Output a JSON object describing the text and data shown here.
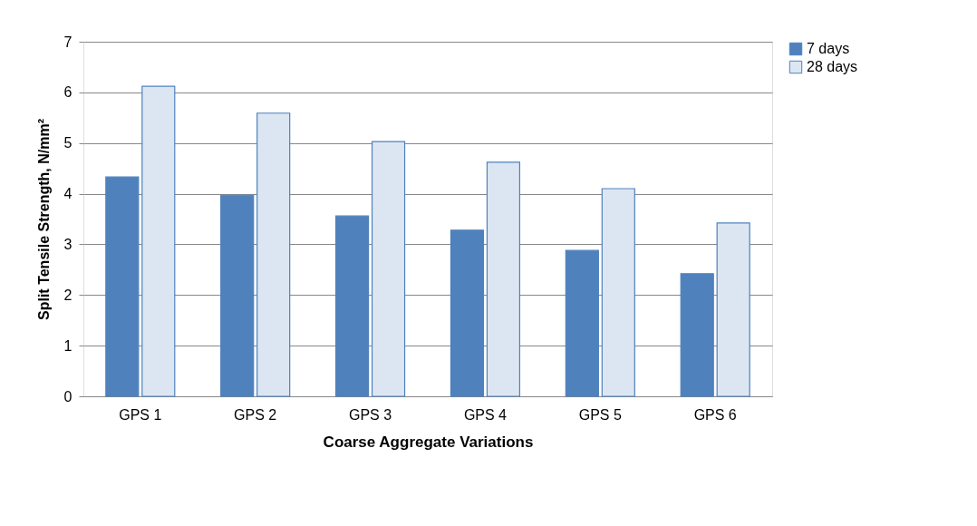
{
  "chart_data": {
    "type": "bar",
    "xlabel": "Coarse Aggregate Variations",
    "ylabel": "Split Tensile Strength, N/mm²",
    "categories": [
      "GPS 1",
      "GPS 2",
      "GPS 3",
      "GPS 4",
      "GPS 5",
      "GPS 6"
    ],
    "series": [
      {
        "name": "7 days",
        "color": "#4f81bd",
        "values": [
          4.33,
          3.97,
          3.56,
          3.28,
          2.88,
          2.42
        ]
      },
      {
        "name": "28 days",
        "color": "#dce6f2",
        "values": [
          6.12,
          5.59,
          5.03,
          4.62,
          4.1,
          3.42
        ]
      }
    ],
    "ylim": [
      0,
      7
    ],
    "yticks": [
      0,
      1,
      2,
      3,
      4,
      5,
      6,
      7
    ],
    "grid": "y",
    "legend": "right"
  }
}
